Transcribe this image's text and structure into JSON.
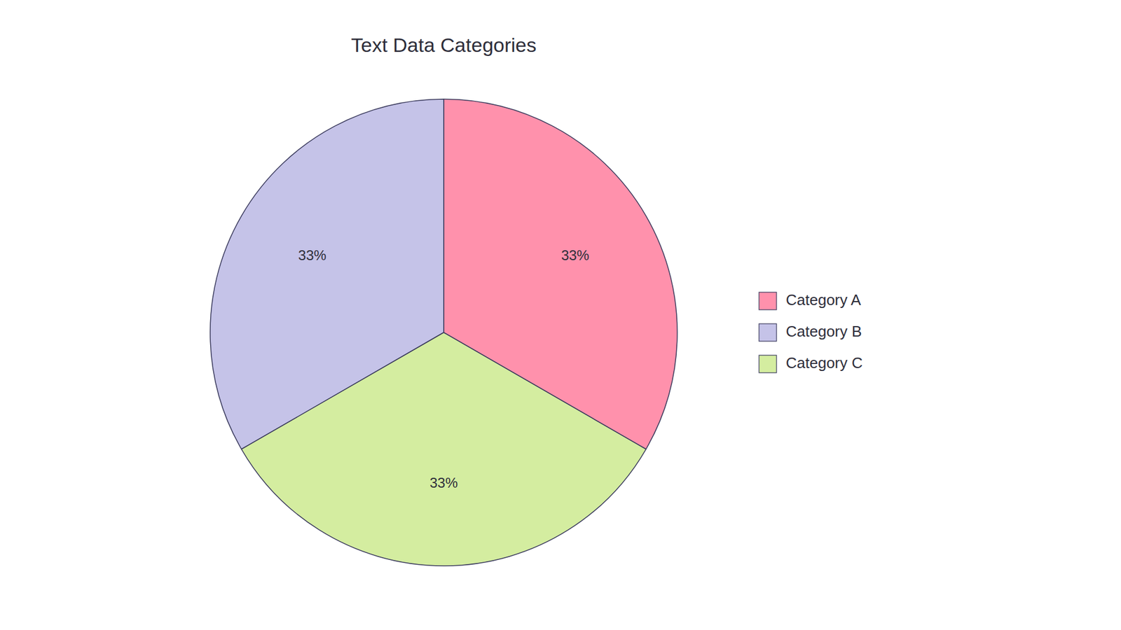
{
  "chart_data": {
    "type": "pie",
    "title": "Text Data Categories",
    "categories": [
      "Category A",
      "Category B",
      "Category C"
    ],
    "values": [
      33,
      33,
      33
    ],
    "value_labels": [
      "33%",
      "33%",
      "33%"
    ],
    "colors": [
      "#FF91AC",
      "#C5C3E8",
      "#D4EDA0"
    ],
    "data_labels": true,
    "legend": "right"
  }
}
